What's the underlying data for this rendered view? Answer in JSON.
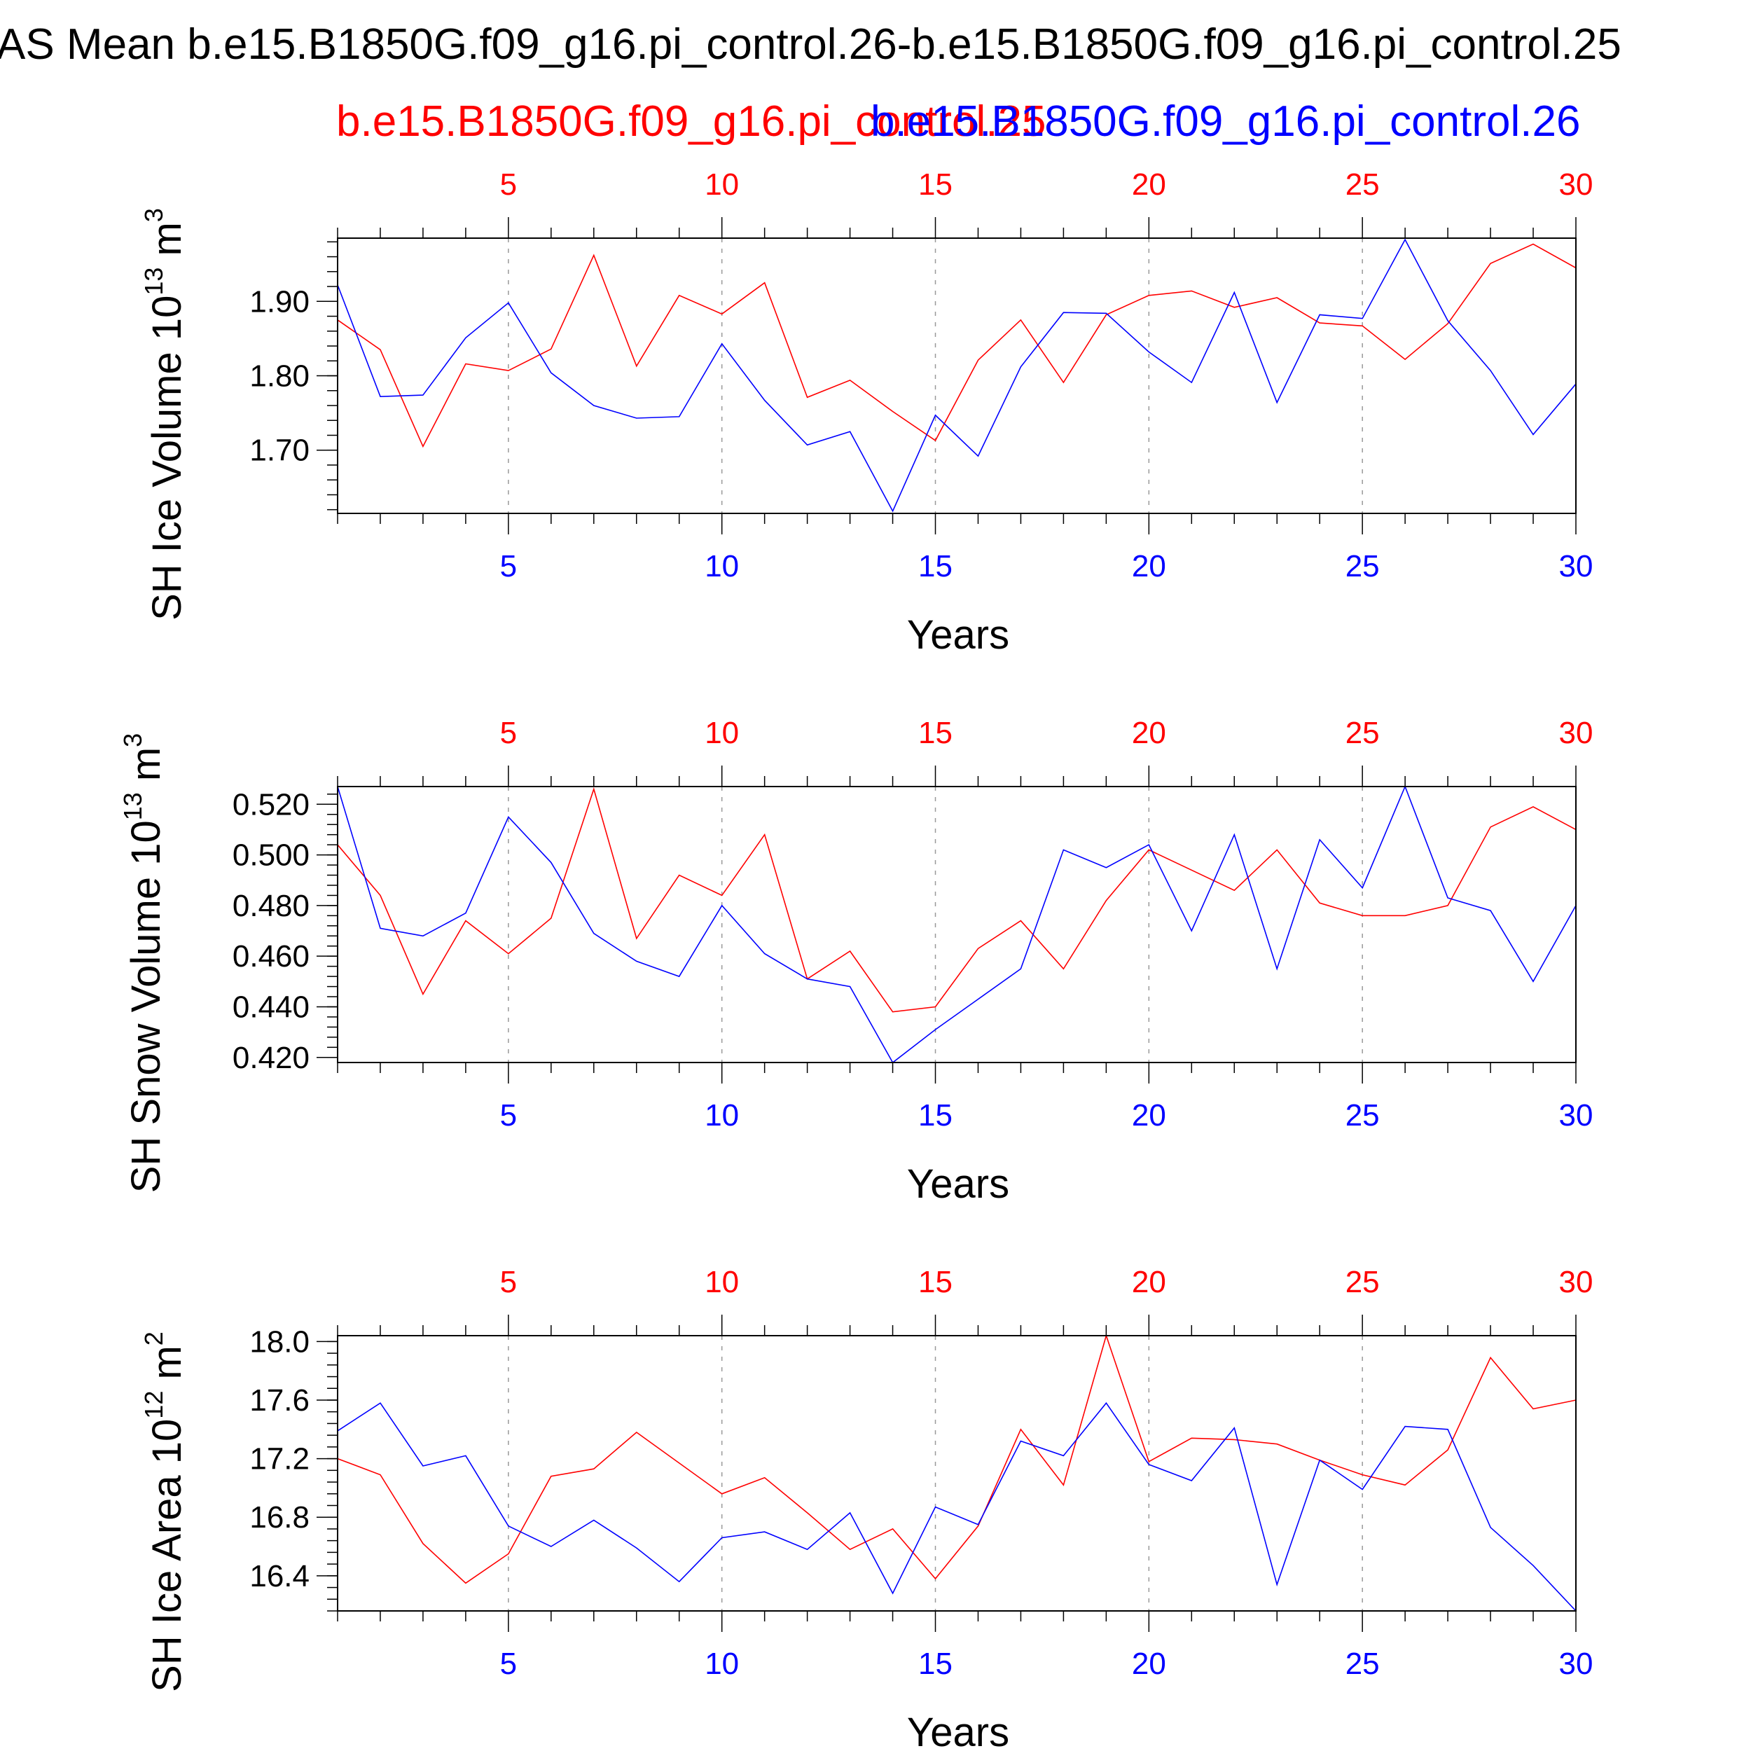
{
  "title": "AS Mean b.e15.B1850G.f09_g16.pi_control.26-b.e15.B1850G.f09_g16.pi_control.25",
  "legend": {
    "series_a": "b.e15.B1850G.f09_g16.pi_control.25",
    "series_b": "b.e15.B1850G.f09_g16.pi_control.26"
  },
  "colors": {
    "series_a": "#ff0000",
    "series_b": "#0000ff",
    "axis": "#000000",
    "grid": "#999999"
  },
  "chart_data": [
    {
      "type": "line",
      "ylabel_text": "SH Ice Volume 10",
      "ylabel_exp": "13",
      "ylabel_unit": "m",
      "ylabel_unit_exp": "3",
      "xlabel": "Years",
      "xlim": [
        1,
        30
      ],
      "ylim": [
        1.615,
        1.985
      ],
      "yticks": [
        "1.70",
        "1.80",
        "1.90"
      ],
      "ytick_values": [
        1.7,
        1.8,
        1.9
      ],
      "xticks": [
        "5",
        "10",
        "15",
        "20",
        "25",
        "30"
      ],
      "grid": "dashed vertical at every 5 years",
      "x": [
        1,
        2,
        3,
        4,
        5,
        6,
        7,
        8,
        9,
        10,
        11,
        12,
        13,
        14,
        15,
        16,
        17,
        18,
        19,
        20,
        21,
        22,
        23,
        24,
        25,
        26,
        27,
        28,
        29,
        30
      ],
      "series": [
        {
          "key": "series_a",
          "values": [
            1.875,
            1.835,
            1.705,
            1.816,
            1.807,
            1.836,
            1.962,
            1.813,
            1.908,
            1.883,
            1.925,
            1.771,
            1.794,
            1.752,
            1.713,
            1.821,
            1.875,
            1.791,
            1.882,
            1.908,
            1.914,
            1.892,
            1.905,
            1.871,
            1.867,
            1.822,
            1.87,
            1.951,
            1.977,
            1.945
          ]
        },
        {
          "key": "series_b",
          "values": [
            1.922,
            1.772,
            1.774,
            1.851,
            1.898,
            1.804,
            1.76,
            1.743,
            1.745,
            1.843,
            1.767,
            1.707,
            1.725,
            1.618,
            1.747,
            1.692,
            1.812,
            1.885,
            1.884,
            1.832,
            1.791,
            1.912,
            1.764,
            1.882,
            1.877,
            1.983,
            1.874,
            1.807,
            1.721,
            1.789
          ]
        }
      ]
    },
    {
      "type": "line",
      "ylabel_text": "SH Snow Volume 10",
      "ylabel_exp": "13",
      "ylabel_unit": "m",
      "ylabel_unit_exp": "3",
      "xlabel": "Years",
      "xlim": [
        1,
        30
      ],
      "ylim": [
        0.418,
        0.527
      ],
      "yticks": [
        "0.420",
        "0.440",
        "0.460",
        "0.480",
        "0.500",
        "0.520"
      ],
      "ytick_values": [
        0.42,
        0.44,
        0.46,
        0.48,
        0.5,
        0.52
      ],
      "xticks": [
        "5",
        "10",
        "15",
        "20",
        "25",
        "30"
      ],
      "grid": "dashed vertical at every 5 years",
      "x": [
        1,
        2,
        3,
        4,
        5,
        6,
        7,
        8,
        9,
        10,
        11,
        12,
        13,
        14,
        15,
        16,
        17,
        18,
        19,
        20,
        21,
        22,
        23,
        24,
        25,
        26,
        27,
        28,
        29,
        30
      ],
      "series": [
        {
          "key": "series_a",
          "values": [
            0.504,
            0.484,
            0.445,
            0.474,
            0.461,
            0.475,
            0.526,
            0.467,
            0.492,
            0.484,
            0.508,
            0.451,
            0.462,
            0.438,
            0.44,
            0.463,
            0.474,
            0.455,
            0.482,
            0.502,
            0.494,
            0.486,
            0.502,
            0.481,
            0.476,
            0.476,
            0.48,
            0.511,
            0.519,
            0.51
          ]
        },
        {
          "key": "series_b",
          "values": [
            0.527,
            0.471,
            0.468,
            0.477,
            0.515,
            0.497,
            0.469,
            0.458,
            0.452,
            0.48,
            0.461,
            0.451,
            0.448,
            0.418,
            0.431,
            0.443,
            0.455,
            0.502,
            0.495,
            0.504,
            0.47,
            0.508,
            0.455,
            0.506,
            0.487,
            0.527,
            0.483,
            0.478,
            0.45,
            0.48
          ]
        }
      ]
    },
    {
      "type": "line",
      "ylabel_text": "SH Ice Area 10",
      "ylabel_exp": "12",
      "ylabel_unit": "m",
      "ylabel_unit_exp": "2",
      "xlabel": "Years",
      "xlim": [
        1,
        30
      ],
      "ylim": [
        16.16,
        18.04
      ],
      "yticks": [
        "16.4",
        "16.8",
        "17.2",
        "17.6",
        "18.0"
      ],
      "ytick_values": [
        16.4,
        16.8,
        17.2,
        17.6,
        18.0
      ],
      "xticks": [
        "5",
        "10",
        "15",
        "20",
        "25",
        "30"
      ],
      "grid": "dashed vertical at every 5 years",
      "x": [
        1,
        2,
        3,
        4,
        5,
        6,
        7,
        8,
        9,
        10,
        11,
        12,
        13,
        14,
        15,
        16,
        17,
        18,
        19,
        20,
        21,
        22,
        23,
        24,
        25,
        26,
        27,
        28,
        29,
        30
      ],
      "series": [
        {
          "key": "series_a",
          "values": [
            17.2,
            17.09,
            16.62,
            16.35,
            16.55,
            17.08,
            17.13,
            17.38,
            17.17,
            16.96,
            17.07,
            16.83,
            16.58,
            16.72,
            16.38,
            16.74,
            17.4,
            17.02,
            18.04,
            17.18,
            17.34,
            17.33,
            17.3,
            17.19,
            17.09,
            17.02,
            17.26,
            17.89,
            17.54,
            17.6
          ]
        },
        {
          "key": "series_b",
          "values": [
            17.39,
            17.58,
            17.15,
            17.22,
            16.74,
            16.6,
            16.78,
            16.59,
            16.36,
            16.66,
            16.7,
            16.58,
            16.83,
            16.28,
            16.87,
            16.75,
            17.32,
            17.22,
            17.58,
            17.16,
            17.05,
            17.41,
            16.34,
            17.19,
            16.99,
            17.42,
            17.4,
            16.73,
            16.47,
            16.16
          ]
        }
      ]
    }
  ]
}
